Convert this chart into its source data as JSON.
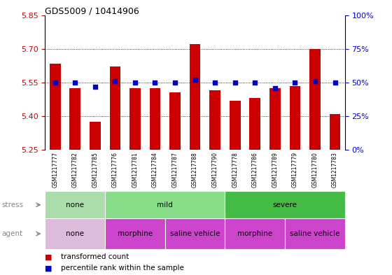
{
  "title": "GDS5009 / 10414906",
  "samples": [
    "GSM1217777",
    "GSM1217782",
    "GSM1217785",
    "GSM1217776",
    "GSM1217781",
    "GSM1217784",
    "GSM1217787",
    "GSM1217788",
    "GSM1217790",
    "GSM1217778",
    "GSM1217786",
    "GSM1217789",
    "GSM1217779",
    "GSM1217780",
    "GSM1217783"
  ],
  "bar_values": [
    5.635,
    5.525,
    5.375,
    5.62,
    5.525,
    5.525,
    5.505,
    5.72,
    5.515,
    5.47,
    5.48,
    5.525,
    5.535,
    5.7,
    5.41
  ],
  "dot_percentiles": [
    50,
    50,
    47,
    51,
    50,
    50,
    50,
    52,
    50,
    50,
    50,
    46,
    50,
    51,
    50
  ],
  "ylim_left": [
    5.25,
    5.85
  ],
  "ylim_right": [
    0,
    100
  ],
  "yticks_left": [
    5.25,
    5.4,
    5.55,
    5.7,
    5.85
  ],
  "yticks_right": [
    0,
    25,
    50,
    75,
    100
  ],
  "ytick_labels_right": [
    "0%",
    "25%",
    "50%",
    "75%",
    "100%"
  ],
  "bar_color": "#cc0000",
  "dot_color": "#0000cc",
  "bar_bottom": 5.25,
  "grid_lines": [
    5.4,
    5.55,
    5.7
  ],
  "stress_groups": [
    {
      "label": "none",
      "start": 0,
      "end": 3,
      "color": "#aaddaa"
    },
    {
      "label": "mild",
      "start": 3,
      "end": 9,
      "color": "#88dd88"
    },
    {
      "label": "severe",
      "start": 9,
      "end": 15,
      "color": "#44bb44"
    }
  ],
  "agent_groups": [
    {
      "label": "none",
      "start": 0,
      "end": 3,
      "color": "#ddbbdd"
    },
    {
      "label": "morphine",
      "start": 3,
      "end": 6,
      "color": "#cc44cc"
    },
    {
      "label": "saline vehicle",
      "start": 6,
      "end": 9,
      "color": "#cc44cc"
    },
    {
      "label": "morphine",
      "start": 9,
      "end": 12,
      "color": "#cc44cc"
    },
    {
      "label": "saline vehicle",
      "start": 12,
      "end": 15,
      "color": "#cc44cc"
    }
  ],
  "tick_label_color_left": "#cc0000",
  "tick_label_color_right": "#0000cc",
  "label_color": "#888888",
  "xtick_bg_color": "#cccccc",
  "plot_border_color": "#000000"
}
